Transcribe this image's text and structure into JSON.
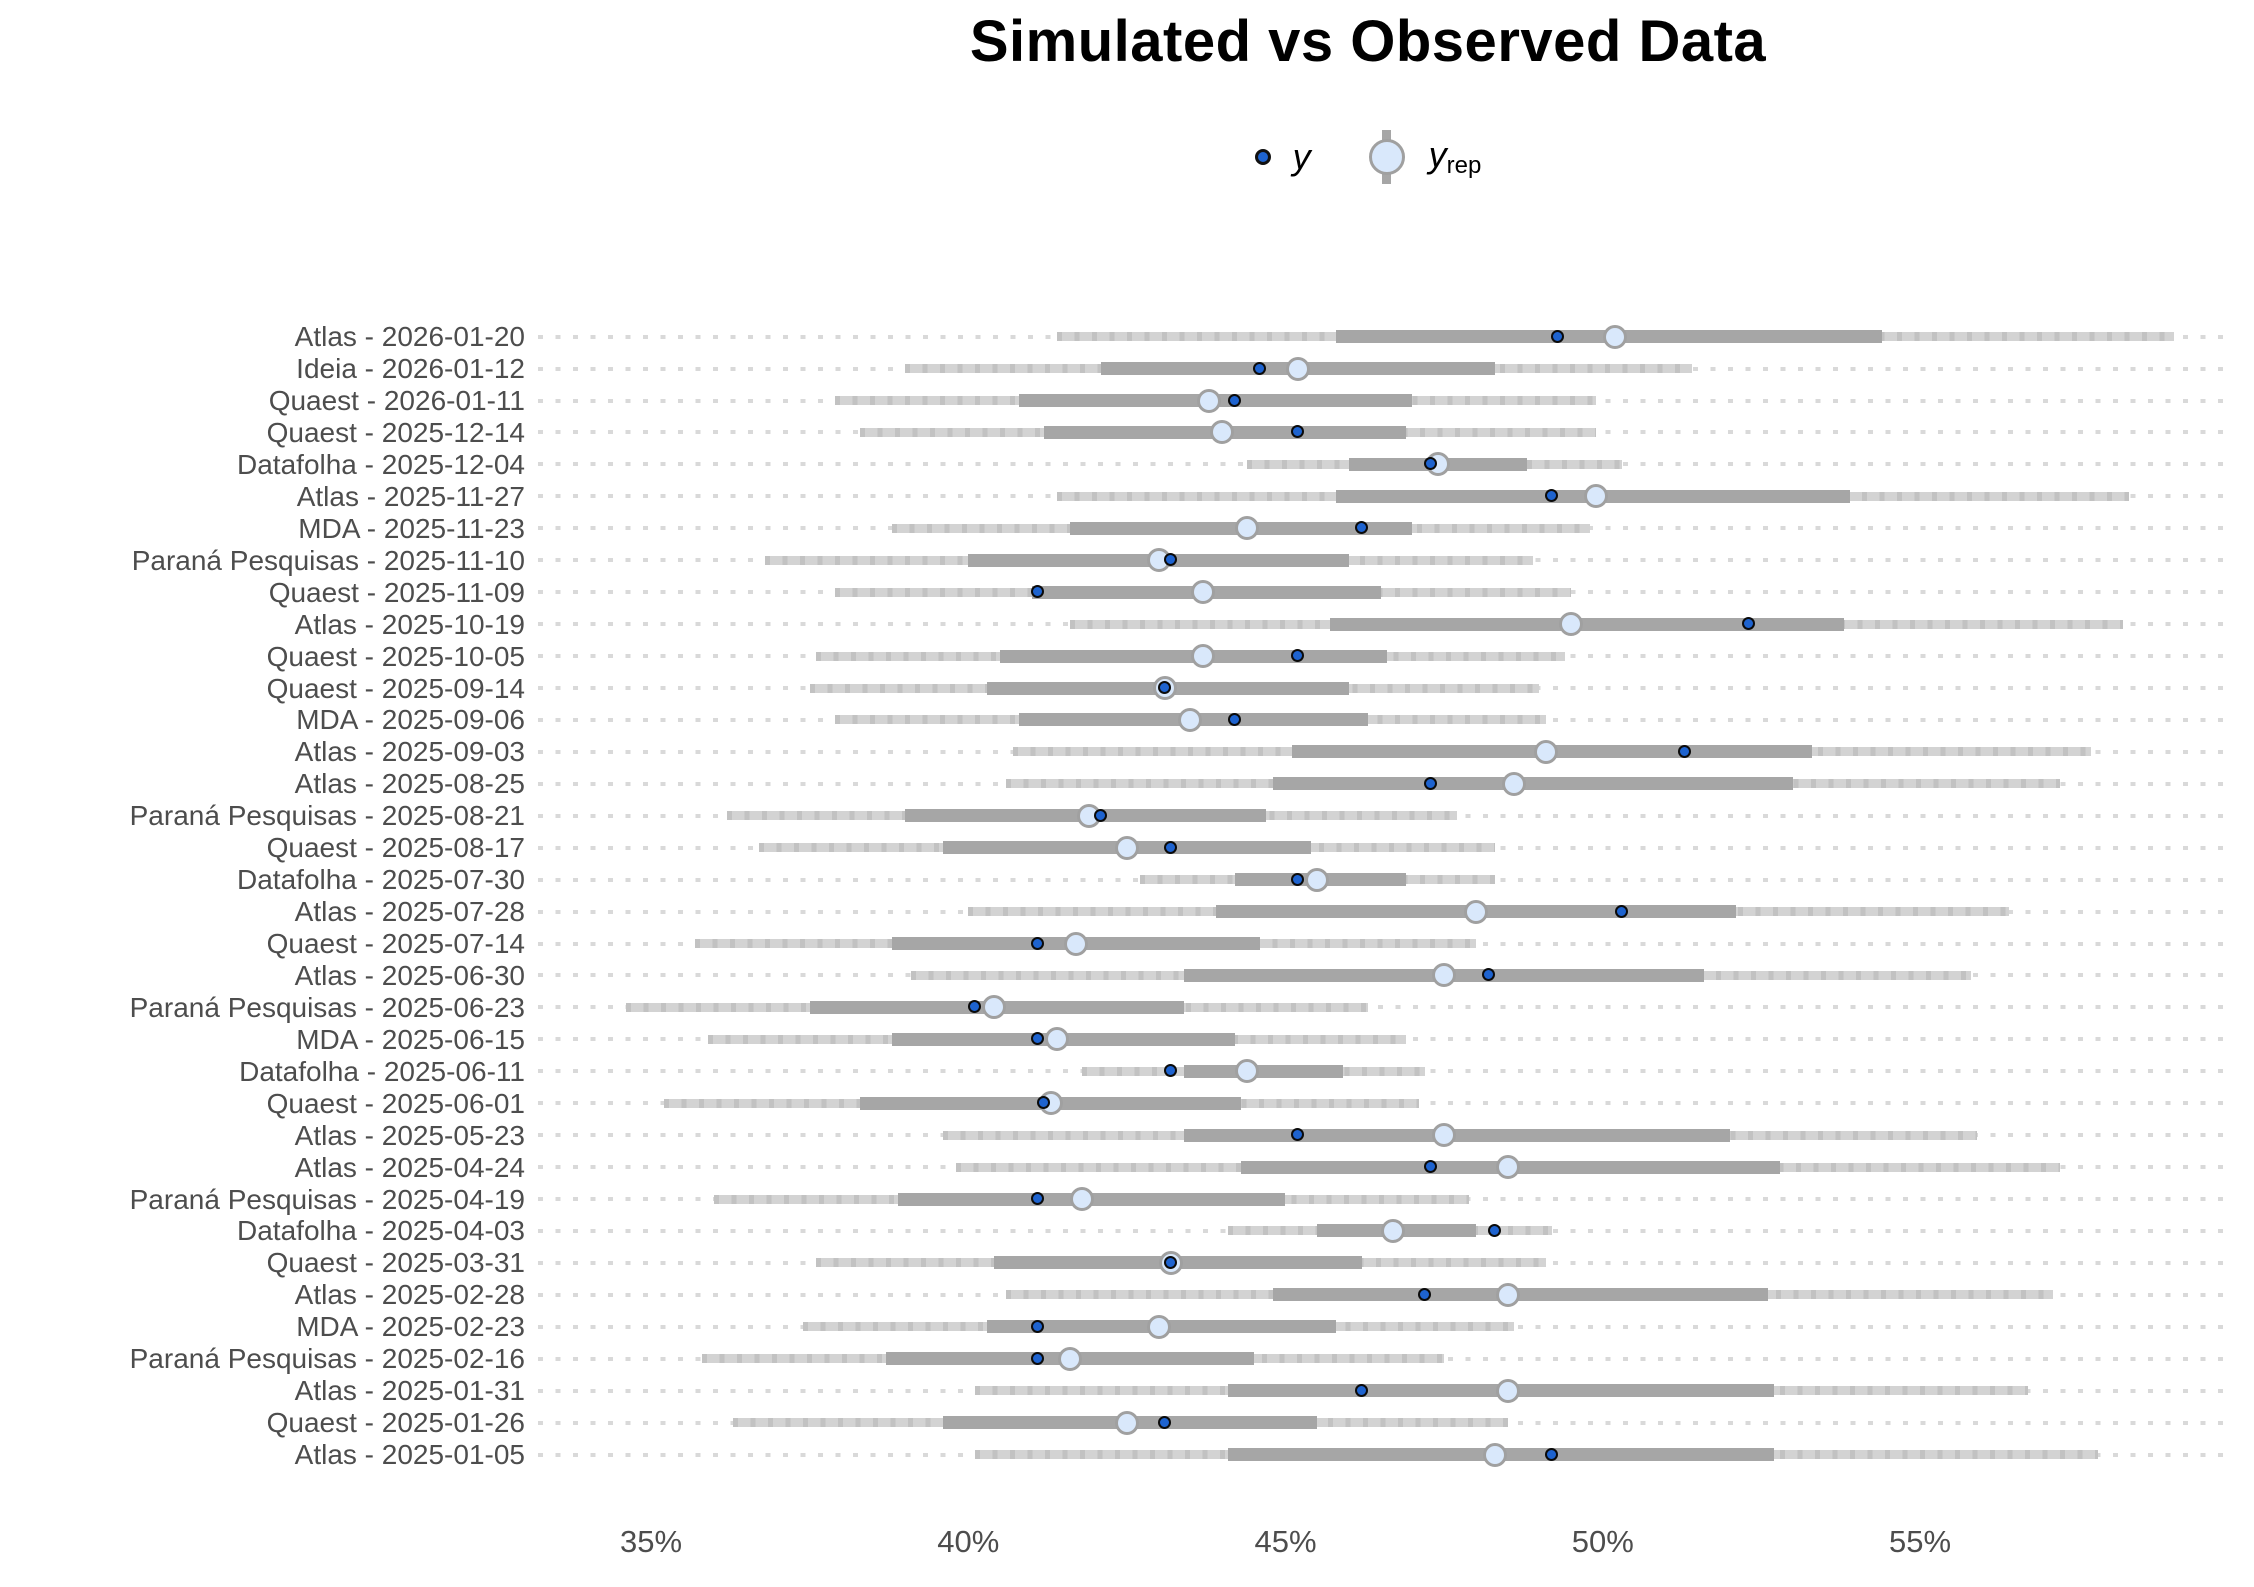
{
  "title": "Simulated vs Observed Data",
  "legend": {
    "y_label": "y",
    "yrep_label": "y",
    "yrep_sub": "rep"
  },
  "colors": {
    "observed_dot": "#1e63cf",
    "observed_dot_border": "#0b0b0b",
    "yrep_fill": "#d9e8fb",
    "yrep_border": "#a0a0a0",
    "inner_interval": "#a6a6a6",
    "outer_interval": "#d3d3d3",
    "outer_texture": "#c2c2c2",
    "grid_dots": "#d9d9d9",
    "axis_text": "#4d4d4d",
    "title_text": "#000000"
  },
  "chart_data": {
    "type": "scatter",
    "mark": "point-with-intervals",
    "title": "Simulated vs Observed Data",
    "xlabel": "",
    "ylabel": "",
    "xlim": [
      33.2,
      59.9
    ],
    "x_unit": "percent",
    "grid": "dotted-horizontal-per-category",
    "legend_position": "top-center",
    "x_ticks": [
      {
        "value": 35,
        "label": "35%"
      },
      {
        "value": 40,
        "label": "40%"
      },
      {
        "value": 45,
        "label": "45%"
      },
      {
        "value": 50,
        "label": "50%"
      },
      {
        "value": 55,
        "label": "55%"
      }
    ],
    "series_meaning": {
      "y": "observed data point (dark blue dot)",
      "y_rep": "posterior predictive median (light blue circle)",
      "inner": "50% predictive interval (dark gray bar)",
      "outer": "90% predictive interval (light gray bar)"
    },
    "rows": [
      {
        "label": "Atlas - 2026-01-20",
        "y": 49.3,
        "y_rep": 50.2,
        "inner": [
          45.8,
          54.4
        ],
        "outer": [
          41.4,
          59.0
        ]
      },
      {
        "label": "Ideia - 2026-01-12",
        "y": 44.6,
        "y_rep": 45.2,
        "inner": [
          42.1,
          48.3
        ],
        "outer": [
          39.0,
          51.4
        ]
      },
      {
        "label": "Quaest - 2026-01-11",
        "y": 44.2,
        "y_rep": 43.8,
        "inner": [
          40.8,
          47.0
        ],
        "outer": [
          37.9,
          49.9
        ]
      },
      {
        "label": "Quaest - 2025-12-14",
        "y": 45.2,
        "y_rep": 44.0,
        "inner": [
          41.2,
          46.9
        ],
        "outer": [
          38.3,
          49.9
        ]
      },
      {
        "label": "Datafolha - 2025-12-04",
        "y": 47.3,
        "y_rep": 47.4,
        "inner": [
          46.0,
          48.8
        ],
        "outer": [
          44.4,
          50.3
        ]
      },
      {
        "label": "Atlas - 2025-11-27",
        "y": 49.2,
        "y_rep": 49.9,
        "inner": [
          45.8,
          53.9
        ],
        "outer": [
          41.4,
          58.3
        ]
      },
      {
        "label": "MDA - 2025-11-23",
        "y": 46.2,
        "y_rep": 44.4,
        "inner": [
          41.6,
          47.0
        ],
        "outer": [
          38.8,
          49.8
        ]
      },
      {
        "label": "Paraná Pesquisas - 2025-11-10",
        "y": 43.2,
        "y_rep": 43.0,
        "inner": [
          40.0,
          46.0
        ],
        "outer": [
          36.8,
          48.9
        ]
      },
      {
        "label": "Quaest - 2025-11-09",
        "y": 41.1,
        "y_rep": 43.7,
        "inner": [
          41.0,
          46.5
        ],
        "outer": [
          37.9,
          49.5
        ]
      },
      {
        "label": "Atlas - 2025-10-19",
        "y": 52.3,
        "y_rep": 49.5,
        "inner": [
          45.7,
          53.8
        ],
        "outer": [
          41.6,
          58.2
        ]
      },
      {
        "label": "Quaest - 2025-10-05",
        "y": 45.2,
        "y_rep": 43.7,
        "inner": [
          40.5,
          46.6
        ],
        "outer": [
          37.6,
          49.4
        ]
      },
      {
        "label": "Quaest - 2025-09-14",
        "y": 43.1,
        "y_rep": 43.1,
        "inner": [
          40.3,
          46.0
        ],
        "outer": [
          37.5,
          49.0
        ]
      },
      {
        "label": "MDA - 2025-09-06",
        "y": 44.2,
        "y_rep": 43.5,
        "inner": [
          40.8,
          46.3
        ],
        "outer": [
          37.9,
          49.1
        ]
      },
      {
        "label": "Atlas - 2025-09-03",
        "y": 51.3,
        "y_rep": 49.1,
        "inner": [
          45.1,
          53.3
        ],
        "outer": [
          40.7,
          57.7
        ]
      },
      {
        "label": "Atlas - 2025-08-25",
        "y": 47.3,
        "y_rep": 48.6,
        "inner": [
          44.8,
          53.0
        ],
        "outer": [
          40.6,
          57.2
        ]
      },
      {
        "label": "Paraná Pesquisas - 2025-08-21",
        "y": 42.1,
        "y_rep": 41.9,
        "inner": [
          39.0,
          44.7
        ],
        "outer": [
          36.2,
          47.7
        ]
      },
      {
        "label": "Quaest - 2025-08-17",
        "y": 43.2,
        "y_rep": 42.5,
        "inner": [
          39.6,
          45.4
        ],
        "outer": [
          36.7,
          48.3
        ]
      },
      {
        "label": "Datafolha - 2025-07-30",
        "y": 45.2,
        "y_rep": 45.5,
        "inner": [
          44.2,
          46.9
        ],
        "outer": [
          42.7,
          48.3
        ]
      },
      {
        "label": "Atlas - 2025-07-28",
        "y": 50.3,
        "y_rep": 48.0,
        "inner": [
          43.9,
          52.1
        ],
        "outer": [
          40.0,
          56.4
        ]
      },
      {
        "label": "Quaest - 2025-07-14",
        "y": 41.1,
        "y_rep": 41.7,
        "inner": [
          38.8,
          44.6
        ],
        "outer": [
          35.7,
          48.0
        ]
      },
      {
        "label": "Atlas - 2025-06-30",
        "y": 48.2,
        "y_rep": 47.5,
        "inner": [
          43.4,
          51.6
        ],
        "outer": [
          39.1,
          55.8
        ]
      },
      {
        "label": "Paraná Pesquisas - 2025-06-23",
        "y": 40.1,
        "y_rep": 40.4,
        "inner": [
          37.5,
          43.4
        ],
        "outer": [
          34.6,
          46.3
        ]
      },
      {
        "label": "MDA - 2025-06-15",
        "y": 41.1,
        "y_rep": 41.4,
        "inner": [
          38.8,
          44.2
        ],
        "outer": [
          35.9,
          46.9
        ]
      },
      {
        "label": "Datafolha - 2025-06-11",
        "y": 43.2,
        "y_rep": 44.4,
        "inner": [
          43.4,
          45.9
        ],
        "outer": [
          41.8,
          47.2
        ]
      },
      {
        "label": "Quaest - 2025-06-01",
        "y": 41.2,
        "y_rep": 41.3,
        "inner": [
          38.3,
          44.3
        ],
        "outer": [
          35.2,
          47.1
        ]
      },
      {
        "label": "Atlas - 2025-05-23",
        "y": 45.2,
        "y_rep": 47.5,
        "inner": [
          43.4,
          52.0
        ],
        "outer": [
          39.6,
          55.9
        ]
      },
      {
        "label": "Atlas - 2025-04-24",
        "y": 47.3,
        "y_rep": 48.5,
        "inner": [
          44.3,
          52.8
        ],
        "outer": [
          39.8,
          57.2
        ]
      },
      {
        "label": "Paraná Pesquisas - 2025-04-19",
        "y": 41.1,
        "y_rep": 41.8,
        "inner": [
          38.9,
          45.0
        ],
        "outer": [
          36.0,
          47.9
        ]
      },
      {
        "label": "Datafolha - 2025-04-03",
        "y": 48.3,
        "y_rep": 46.7,
        "inner": [
          45.5,
          48.0
        ],
        "outer": [
          44.1,
          49.2
        ]
      },
      {
        "label": "Quaest - 2025-03-31",
        "y": 43.2,
        "y_rep": 43.2,
        "inner": [
          40.4,
          46.2
        ],
        "outer": [
          37.6,
          49.1
        ]
      },
      {
        "label": "Atlas - 2025-02-28",
        "y": 47.2,
        "y_rep": 48.5,
        "inner": [
          44.8,
          52.6
        ],
        "outer": [
          40.6,
          57.1
        ]
      },
      {
        "label": "MDA - 2025-02-23",
        "y": 41.1,
        "y_rep": 43.0,
        "inner": [
          40.3,
          45.8
        ],
        "outer": [
          37.4,
          48.6
        ]
      },
      {
        "label": "Paraná Pesquisas - 2025-02-16",
        "y": 41.1,
        "y_rep": 41.6,
        "inner": [
          38.7,
          44.5
        ],
        "outer": [
          35.8,
          47.5
        ]
      },
      {
        "label": "Atlas - 2025-01-31",
        "y": 46.2,
        "y_rep": 48.5,
        "inner": [
          44.1,
          52.7
        ],
        "outer": [
          40.1,
          56.7
        ]
      },
      {
        "label": "Quaest - 2025-01-26",
        "y": 43.1,
        "y_rep": 42.5,
        "inner": [
          39.6,
          45.5
        ],
        "outer": [
          36.3,
          48.5
        ]
      },
      {
        "label": "Atlas - 2025-01-05",
        "y": 49.2,
        "y_rep": 48.3,
        "inner": [
          44.1,
          52.7
        ],
        "outer": [
          40.1,
          57.8
        ]
      }
    ]
  }
}
